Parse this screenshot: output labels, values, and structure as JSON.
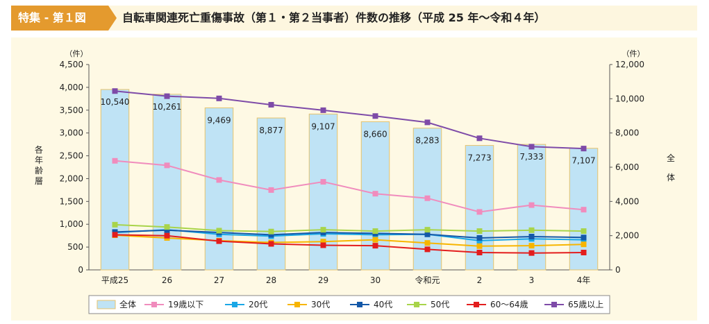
{
  "header": {
    "badge": "特集 - 第１図",
    "title": "自転車関連死亡重傷事故（第１・第２当事者）件数の推移（平成 25 年〜令和４年）"
  },
  "colors": {
    "badge": "#e49a2e",
    "header_bg": "#fdf6df",
    "plot_bg": "#fef9e4",
    "bar_fill": "#bfe3f5",
    "bar_edge": "#e7c36a"
  },
  "chart_data": {
    "type": "bar",
    "categories": [
      "平成25",
      "26",
      "27",
      "28",
      "29",
      "30",
      "令和元",
      "2",
      "3",
      "4年"
    ],
    "y_left": {
      "label_chars": [
        "各",
        "年",
        "齢",
        "層"
      ],
      "unit": "（件）",
      "ticks": [
        "4,500",
        "4,000",
        "3,500",
        "3,000",
        "2,500",
        "2,000",
        "1,500",
        "1,000",
        "500",
        "0"
      ],
      "range": [
        0,
        4500
      ]
    },
    "y_right": {
      "label_chars": [
        "全",
        "体"
      ],
      "unit": "（件）",
      "ticks": [
        "12,000",
        "10,000",
        "8,000",
        "6,000",
        "4,000",
        "2,000",
        "0"
      ],
      "range": [
        0,
        12000
      ]
    },
    "bars": {
      "name": "全体",
      "axis": "right",
      "values": [
        10540,
        10261,
        9469,
        8877,
        9107,
        8660,
        8283,
        7273,
        7333,
        7107
      ],
      "labels": [
        "10,540",
        "10,261",
        "9,469",
        "8,877",
        "9,107",
        "8,660",
        "8,283",
        "7,273",
        "7,333",
        "7,107"
      ]
    },
    "series": [
      {
        "name": "19歳以下",
        "color": "#f08cbd",
        "values": [
          2390,
          2290,
          1970,
          1750,
          1930,
          1670,
          1570,
          1270,
          1420,
          1320
        ]
      },
      {
        "name": "20代",
        "color": "#1aa7e6",
        "values": [
          820,
          880,
          780,
          740,
          790,
          770,
          780,
          640,
          680,
          660
        ]
      },
      {
        "name": "30代",
        "color": "#f7b500",
        "values": [
          760,
          700,
          640,
          600,
          620,
          660,
          590,
          520,
          530,
          560
        ]
      },
      {
        "name": "40代",
        "color": "#1458a8",
        "values": [
          830,
          870,
          820,
          770,
          820,
          800,
          780,
          700,
          730,
          710
        ]
      },
      {
        "name": "50代",
        "color": "#a8d44a",
        "values": [
          990,
          940,
          860,
          840,
          880,
          850,
          880,
          850,
          870,
          850
        ]
      },
      {
        "name": "60〜64歳",
        "color": "#e31d1d",
        "values": [
          770,
          750,
          630,
          570,
          540,
          530,
          450,
          380,
          370,
          380
        ]
      },
      {
        "name": "65歳以上",
        "color": "#7e4ba8",
        "axis": "right",
        "values": [
          10450,
          10150,
          10020,
          9650,
          9330,
          8990,
          8620,
          7690,
          7200,
          7090
        ]
      }
    ],
    "legend_position": "bottom",
    "grid": false
  }
}
